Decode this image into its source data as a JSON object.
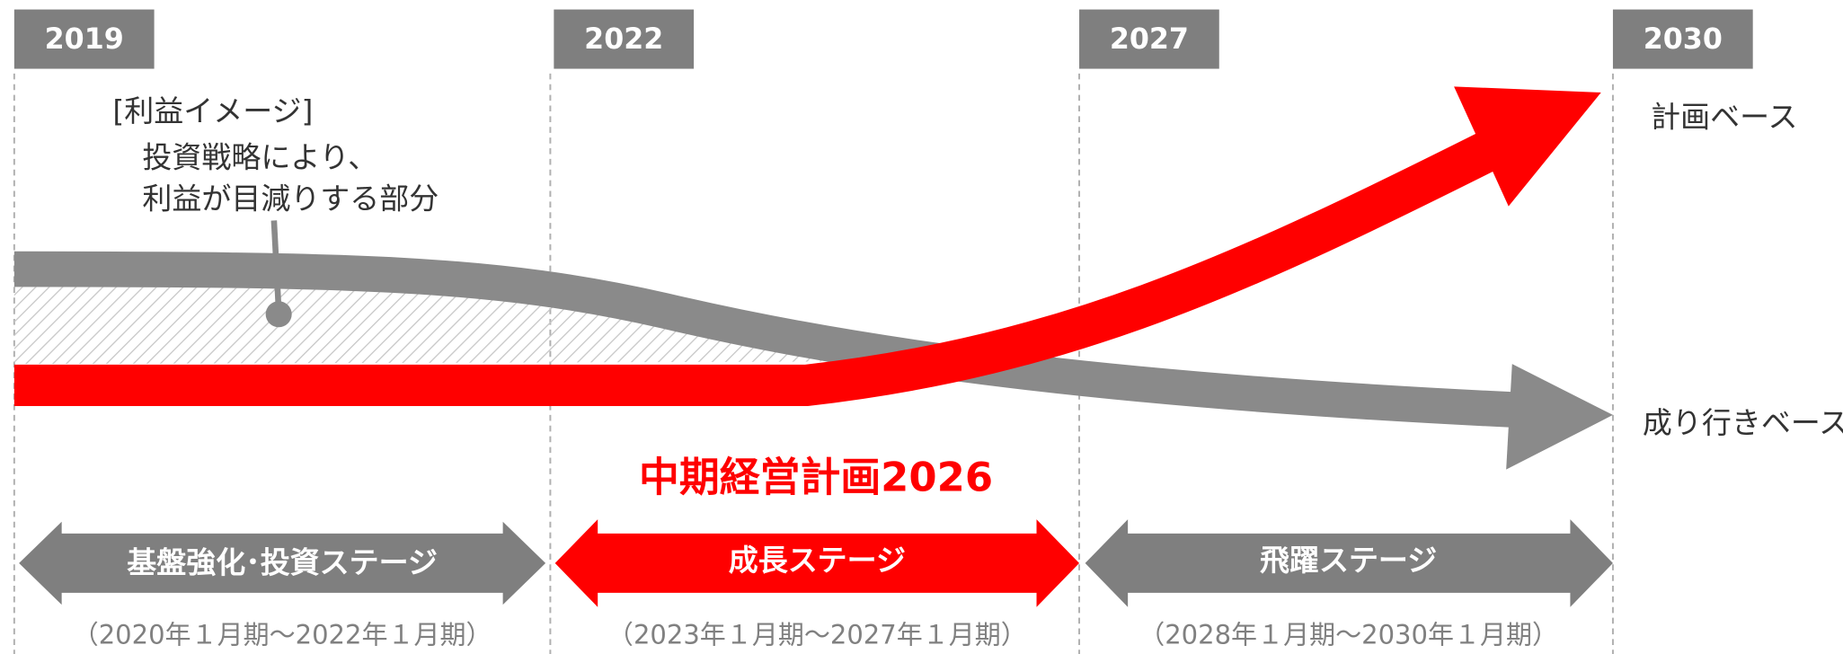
{
  "years": [
    "2019",
    "2022",
    "2027",
    "2030"
  ],
  "annotation": {
    "heading": "[利益イメージ]",
    "lines": [
      "投資戦略により、",
      "利益が目減りする部分"
    ]
  },
  "labels": {
    "plan": "計画ベース",
    "trend": "成り行きベース"
  },
  "plan_title": "中期経営計画2026",
  "stages": [
    {
      "name": "基盤強化･投資ステージ",
      "period": "（2020年１月期～2022年１月期）"
    },
    {
      "name": "成長ステージ",
      "period": "（2023年１月期～2027年１月期）"
    },
    {
      "name": "飛躍ステージ",
      "period": "（2028年１月期～2030年１月期）"
    }
  ]
}
